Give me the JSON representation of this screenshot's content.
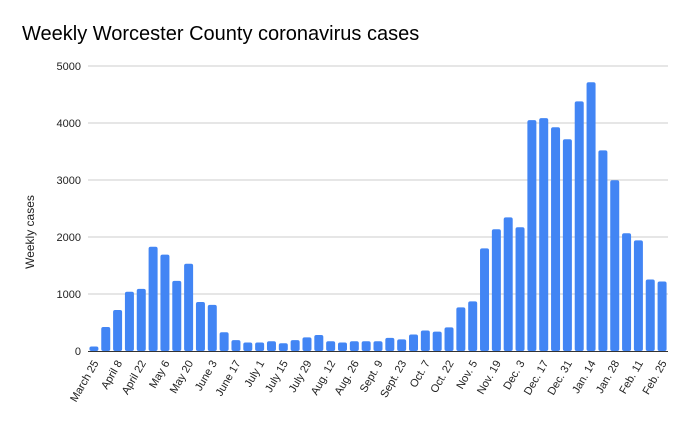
{
  "chart_data": {
    "type": "bar",
    "title": "Weekly Worcester County coronavirus cases",
    "xlabel": "",
    "ylabel": "Weekly cases",
    "ylim": [
      0,
      5000
    ],
    "yticks": [
      0,
      1000,
      2000,
      3000,
      4000,
      5000
    ],
    "grid": true,
    "legend": "none",
    "color": "#4285F4",
    "tick_every": 2,
    "tick_labels": [
      "March 25",
      "April 8",
      "April 22",
      "May 6",
      "May 20",
      "June 3",
      "June 17",
      "July 1",
      "July 15",
      "July 29",
      "Aug. 12",
      "Aug. 26",
      "Sept. 9",
      "Sept. 23",
      "Oct. 7",
      "Oct. 22",
      "Nov. 5",
      "Nov. 19",
      "Dec. 3",
      "Dec. 17",
      "Dec. 31",
      "Jan. 14",
      "Jan. 28",
      "Feb. 11",
      "Feb. 25"
    ],
    "values": [
      80,
      420,
      720,
      1040,
      1090,
      1830,
      1690,
      1230,
      1530,
      860,
      810,
      330,
      190,
      150,
      150,
      170,
      135,
      190,
      240,
      280,
      170,
      150,
      170,
      170,
      170,
      230,
      205,
      290,
      360,
      340,
      415,
      765,
      870,
      1800,
      2135,
      2345,
      2170,
      4050,
      4085,
      3925,
      3715,
      4380,
      4715,
      3520,
      2995,
      2065,
      1940,
      1255,
      1220
    ]
  }
}
